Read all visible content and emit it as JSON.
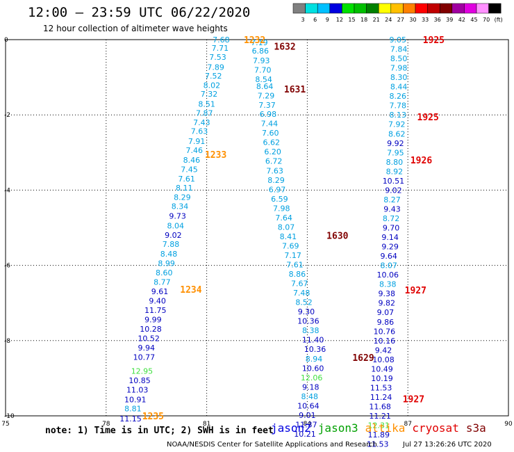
{
  "header": {
    "title": "12:00 – 23:59 UTC 06/22/2020",
    "subtitle": "12 hour collection of altimeter wave heights"
  },
  "colorbar": {
    "colors": [
      "#808080",
      "#00e0e0",
      "#00c0ff",
      "#0000e0",
      "#00e000",
      "#00c000",
      "#008000",
      "#ffff00",
      "#ffc000",
      "#ff8000",
      "#ff0000",
      "#c00000",
      "#800000",
      "#a000a0",
      "#e000e0",
      "#ff90ff",
      "#000000"
    ],
    "labels": [
      "3",
      "6",
      "9",
      "12",
      "15",
      "18",
      "21",
      "24",
      "27",
      "30",
      "33",
      "36",
      "39",
      "42",
      "45",
      "70",
      "(ft)"
    ]
  },
  "note": "note: 1) Time is in UTC; 2) SWH is in feet",
  "satellites": [
    {
      "name": "jason2",
      "color": "#0000e0"
    },
    {
      "name": "jason3",
      "color": "#00a000"
    },
    {
      "name": "altika",
      "color": "#ff9000"
    },
    {
      "name": "cryosat",
      "color": "#e00000"
    },
    {
      "name": "s3a",
      "color": "#800000"
    }
  ],
  "footer": {
    "credit": "NOAA/NESDIS Center for Satellite Applications and Research",
    "timestamp": "Jul 27 13:26:26 UTC 2020"
  },
  "chart_data": {
    "type": "scatter",
    "xlim": [
      75,
      90
    ],
    "ylim": [
      -10,
      0
    ],
    "x_ticks": [
      "75",
      "78",
      "81",
      "84",
      "87",
      "90"
    ],
    "y_ticks": [
      "0",
      "-2",
      "-4",
      "-6",
      "-8",
      "-10"
    ],
    "grid": true,
    "points": [
      {
        "x": 81.43,
        "y": 0.0,
        "v": "7.68",
        "c": "#00a0e0"
      },
      {
        "x": 81.4,
        "y": -0.22,
        "v": "7.71",
        "c": "#00a0e0"
      },
      {
        "x": 81.33,
        "y": -0.46,
        "v": "7.53",
        "c": "#00a0e0"
      },
      {
        "x": 81.27,
        "y": -0.73,
        "v": "7.89",
        "c": "#00a0e0"
      },
      {
        "x": 81.2,
        "y": -0.96,
        "v": "7.52",
        "c": "#00a0e0"
      },
      {
        "x": 81.15,
        "y": -1.21,
        "v": "8.02",
        "c": "#00a0e0"
      },
      {
        "x": 81.07,
        "y": -1.44,
        "v": "7.32",
        "c": "#00a0e0"
      },
      {
        "x": 81.0,
        "y": -1.71,
        "v": "8.51",
        "c": "#00a0e0"
      },
      {
        "x": 80.93,
        "y": -1.95,
        "v": "7.87",
        "c": "#00a0e0"
      },
      {
        "x": 80.85,
        "y": -2.2,
        "v": "7.43",
        "c": "#00a0e0"
      },
      {
        "x": 80.78,
        "y": -2.43,
        "v": "7.63",
        "c": "#00a0e0"
      },
      {
        "x": 80.7,
        "y": -2.7,
        "v": "7.91",
        "c": "#00a0e0"
      },
      {
        "x": 80.63,
        "y": -2.94,
        "v": "7.46",
        "c": "#00a0e0"
      },
      {
        "x": 80.55,
        "y": -3.2,
        "v": "8.46",
        "c": "#00a0e0"
      },
      {
        "x": 80.48,
        "y": -3.45,
        "v": "7.45",
        "c": "#00a0e0"
      },
      {
        "x": 80.4,
        "y": -3.7,
        "v": "7.61",
        "c": "#00a0e0"
      },
      {
        "x": 80.33,
        "y": -3.94,
        "v": "8.11",
        "c": "#00a0e0"
      },
      {
        "x": 80.27,
        "y": -4.19,
        "v": "8.29",
        "c": "#00a0e0"
      },
      {
        "x": 80.2,
        "y": -4.43,
        "v": "8.34",
        "c": "#00a0e0"
      },
      {
        "x": 80.13,
        "y": -4.69,
        "v": "9.73",
        "c": "#0000c0"
      },
      {
        "x": 80.07,
        "y": -4.94,
        "v": "8.04",
        "c": "#00a0e0"
      },
      {
        "x": 80.0,
        "y": -5.19,
        "v": "9.02",
        "c": "#0000c0"
      },
      {
        "x": 79.93,
        "y": -5.43,
        "v": "7.88",
        "c": "#00a0e0"
      },
      {
        "x": 79.87,
        "y": -5.69,
        "v": "8.48",
        "c": "#00a0e0"
      },
      {
        "x": 79.8,
        "y": -5.94,
        "v": "8.99",
        "c": "#00a0e0"
      },
      {
        "x": 79.73,
        "y": -6.19,
        "v": "8.60",
        "c": "#00a0e0"
      },
      {
        "x": 79.67,
        "y": -6.44,
        "v": "8.77",
        "c": "#00a0e0"
      },
      {
        "x": 79.6,
        "y": -6.69,
        "v": "9.61",
        "c": "#0000c0"
      },
      {
        "x": 79.53,
        "y": -6.94,
        "v": "9.40",
        "c": "#0000c0"
      },
      {
        "x": 79.47,
        "y": -7.19,
        "v": "11.75",
        "c": "#0000c0"
      },
      {
        "x": 79.4,
        "y": -7.44,
        "v": "9.99",
        "c": "#0000c0"
      },
      {
        "x": 79.33,
        "y": -7.69,
        "v": "10.28",
        "c": "#0000c0"
      },
      {
        "x": 79.27,
        "y": -7.94,
        "v": "10.52",
        "c": "#0000c0"
      },
      {
        "x": 79.2,
        "y": -8.19,
        "v": "9.94",
        "c": "#0000c0"
      },
      {
        "x": 79.13,
        "y": -8.44,
        "v": "10.77",
        "c": "#0000c0"
      },
      {
        "x": 79.07,
        "y": -8.81,
        "v": "12.95",
        "c": "#40e040"
      },
      {
        "x": 79.0,
        "y": -9.06,
        "v": "10.85",
        "c": "#0000c0"
      },
      {
        "x": 78.93,
        "y": -9.31,
        "v": "11.03",
        "c": "#0000c0"
      },
      {
        "x": 78.87,
        "y": -9.57,
        "v": "10.91",
        "c": "#0000c0"
      },
      {
        "x": 78.8,
        "y": -9.81,
        "v": "8.81",
        "c": "#00a0e0"
      },
      {
        "x": 78.73,
        "y": -10.07,
        "v": "11.15",
        "c": "#0000c0"
      },
      {
        "x": 82.57,
        "y": -0.07,
        "v": "7.19",
        "c": "#00a0e0"
      },
      {
        "x": 82.6,
        "y": -0.3,
        "v": "6.86",
        "c": "#00a0e0"
      },
      {
        "x": 82.63,
        "y": -0.55,
        "v": "7.93",
        "c": "#00a0e0"
      },
      {
        "x": 82.67,
        "y": -0.8,
        "v": "7.70",
        "c": "#00a0e0"
      },
      {
        "x": 82.7,
        "y": -1.05,
        "v": "8.54",
        "c": "#00a0e0"
      },
      {
        "x": 82.73,
        "y": -1.24,
        "v": "8.64",
        "c": "#00a0e0"
      },
      {
        "x": 82.77,
        "y": -1.49,
        "v": "7.29",
        "c": "#00a0e0"
      },
      {
        "x": 82.8,
        "y": -1.74,
        "v": "7.37",
        "c": "#00a0e0"
      },
      {
        "x": 82.83,
        "y": -1.98,
        "v": "6.98",
        "c": "#00a0e0"
      },
      {
        "x": 82.87,
        "y": -2.23,
        "v": "7.44",
        "c": "#00a0e0"
      },
      {
        "x": 82.9,
        "y": -2.48,
        "v": "7.60",
        "c": "#00a0e0"
      },
      {
        "x": 82.93,
        "y": -2.73,
        "v": "6.62",
        "c": "#00a0e0"
      },
      {
        "x": 82.97,
        "y": -2.98,
        "v": "6.20",
        "c": "#00a0e0"
      },
      {
        "x": 83.0,
        "y": -3.23,
        "v": "6.72",
        "c": "#00a0e0"
      },
      {
        "x": 83.03,
        "y": -3.48,
        "v": "7.63",
        "c": "#00a0e0"
      },
      {
        "x": 83.07,
        "y": -3.73,
        "v": "8.29",
        "c": "#00a0e0"
      },
      {
        "x": 83.1,
        "y": -3.98,
        "v": "6.97",
        "c": "#00a0e0"
      },
      {
        "x": 83.17,
        "y": -4.23,
        "v": "6.59",
        "c": "#00a0e0"
      },
      {
        "x": 83.23,
        "y": -4.48,
        "v": "7.98",
        "c": "#00a0e0"
      },
      {
        "x": 83.3,
        "y": -4.73,
        "v": "7.64",
        "c": "#00a0e0"
      },
      {
        "x": 83.37,
        "y": -4.98,
        "v": "8.07",
        "c": "#00a0e0"
      },
      {
        "x": 83.43,
        "y": -5.23,
        "v": "8.41",
        "c": "#00a0e0"
      },
      {
        "x": 83.5,
        "y": -5.48,
        "v": "7.69",
        "c": "#00a0e0"
      },
      {
        "x": 83.57,
        "y": -5.73,
        "v": "7.17",
        "c": "#00a0e0"
      },
      {
        "x": 83.63,
        "y": -5.98,
        "v": "7.61",
        "c": "#00a0e0"
      },
      {
        "x": 83.7,
        "y": -6.23,
        "v": "8.86",
        "c": "#00a0e0"
      },
      {
        "x": 83.77,
        "y": -6.48,
        "v": "7.67",
        "c": "#00a0e0"
      },
      {
        "x": 83.83,
        "y": -6.73,
        "v": "7.48",
        "c": "#00a0e0"
      },
      {
        "x": 83.9,
        "y": -6.98,
        "v": "8.52",
        "c": "#00a0e0"
      },
      {
        "x": 83.97,
        "y": -7.23,
        "v": "9.30",
        "c": "#0000c0"
      },
      {
        "x": 84.03,
        "y": -7.48,
        "v": "10.36",
        "c": "#0000c0"
      },
      {
        "x": 84.1,
        "y": -7.73,
        "v": "8.38",
        "c": "#00a0e0"
      },
      {
        "x": 84.17,
        "y": -7.98,
        "v": "11.40",
        "c": "#0000c0"
      },
      {
        "x": 84.23,
        "y": -8.23,
        "v": "10.36",
        "c": "#0000c0"
      },
      {
        "x": 84.2,
        "y": -8.48,
        "v": "8.94",
        "c": "#00a0e0"
      },
      {
        "x": 84.17,
        "y": -8.73,
        "v": "10.60",
        "c": "#0000c0"
      },
      {
        "x": 84.13,
        "y": -8.98,
        "v": "12.06",
        "c": "#40e040"
      },
      {
        "x": 84.1,
        "y": -9.23,
        "v": "9.18",
        "c": "#0000c0"
      },
      {
        "x": 84.07,
        "y": -9.48,
        "v": "8.48",
        "c": "#00a0e0"
      },
      {
        "x": 84.03,
        "y": -9.73,
        "v": "10.64",
        "c": "#0000c0"
      },
      {
        "x": 84.0,
        "y": -9.98,
        "v": "9.01",
        "c": "#0000c0"
      },
      {
        "x": 83.97,
        "y": -10.23,
        "v": "11.37",
        "c": "#0000c0"
      },
      {
        "x": 83.93,
        "y": -10.48,
        "v": "10.21",
        "c": "#0000c0"
      },
      {
        "x": 86.7,
        "y": 0.0,
        "v": "9.05",
        "c": "#00a0e0"
      },
      {
        "x": 86.73,
        "y": -0.25,
        "v": "7.84",
        "c": "#00a0e0"
      },
      {
        "x": 86.73,
        "y": -0.5,
        "v": "8.50",
        "c": "#00a0e0"
      },
      {
        "x": 86.73,
        "y": -0.75,
        "v": "7.98",
        "c": "#00a0e0"
      },
      {
        "x": 86.73,
        "y": -1.0,
        "v": "8.30",
        "c": "#00a0e0"
      },
      {
        "x": 86.73,
        "y": -1.25,
        "v": "8.44",
        "c": "#00a0e0"
      },
      {
        "x": 86.7,
        "y": -1.5,
        "v": "8.26",
        "c": "#00a0e0"
      },
      {
        "x": 86.7,
        "y": -1.75,
        "v": "7.78",
        "c": "#00a0e0"
      },
      {
        "x": 86.7,
        "y": -2.0,
        "v": "8.13",
        "c": "#00a0e0"
      },
      {
        "x": 86.67,
        "y": -2.25,
        "v": "7.92",
        "c": "#00a0e0"
      },
      {
        "x": 86.67,
        "y": -2.5,
        "v": "8.62",
        "c": "#00a0e0"
      },
      {
        "x": 86.63,
        "y": -2.75,
        "v": "9.92",
        "c": "#0000c0"
      },
      {
        "x": 86.63,
        "y": -3.0,
        "v": "7.95",
        "c": "#00a0e0"
      },
      {
        "x": 86.6,
        "y": -3.25,
        "v": "8.80",
        "c": "#00a0e0"
      },
      {
        "x": 86.6,
        "y": -3.5,
        "v": "8.92",
        "c": "#00a0e0"
      },
      {
        "x": 86.57,
        "y": -3.75,
        "v": "10.51",
        "c": "#0000c0"
      },
      {
        "x": 86.57,
        "y": -4.0,
        "v": "9.02",
        "c": "#0000c0"
      },
      {
        "x": 86.53,
        "y": -4.25,
        "v": "8.27",
        "c": "#00a0e0"
      },
      {
        "x": 86.53,
        "y": -4.5,
        "v": "9.43",
        "c": "#0000c0"
      },
      {
        "x": 86.5,
        "y": -4.75,
        "v": "8.72",
        "c": "#00a0e0"
      },
      {
        "x": 86.5,
        "y": -5.0,
        "v": "9.70",
        "c": "#0000c0"
      },
      {
        "x": 86.47,
        "y": -5.25,
        "v": "9.14",
        "c": "#0000c0"
      },
      {
        "x": 86.47,
        "y": -5.5,
        "v": "9.29",
        "c": "#0000c0"
      },
      {
        "x": 86.43,
        "y": -5.75,
        "v": "9.64",
        "c": "#0000c0"
      },
      {
        "x": 86.43,
        "y": -6.0,
        "v": "8.07",
        "c": "#00a0e0"
      },
      {
        "x": 86.4,
        "y": -6.25,
        "v": "10.06",
        "c": "#0000c0"
      },
      {
        "x": 86.4,
        "y": -6.5,
        "v": "8.38",
        "c": "#00a0e0"
      },
      {
        "x": 86.37,
        "y": -6.75,
        "v": "9.38",
        "c": "#0000c0"
      },
      {
        "x": 86.37,
        "y": -7.0,
        "v": "9.82",
        "c": "#0000c0"
      },
      {
        "x": 86.33,
        "y": -7.25,
        "v": "9.07",
        "c": "#0000c0"
      },
      {
        "x": 86.33,
        "y": -7.5,
        "v": "9.86",
        "c": "#0000c0"
      },
      {
        "x": 86.3,
        "y": -7.75,
        "v": "10.76",
        "c": "#0000c0"
      },
      {
        "x": 86.3,
        "y": -8.0,
        "v": "10.16",
        "c": "#0000c0"
      },
      {
        "x": 86.27,
        "y": -8.25,
        "v": "9.42",
        "c": "#0000c0"
      },
      {
        "x": 86.27,
        "y": -8.5,
        "v": "10.08",
        "c": "#0000c0"
      },
      {
        "x": 86.23,
        "y": -8.75,
        "v": "10.49",
        "c": "#0000c0"
      },
      {
        "x": 86.23,
        "y": -9.0,
        "v": "10.19",
        "c": "#0000c0"
      },
      {
        "x": 86.2,
        "y": -9.25,
        "v": "11.53",
        "c": "#0000c0"
      },
      {
        "x": 86.2,
        "y": -9.5,
        "v": "11.24",
        "c": "#0000c0"
      },
      {
        "x": 86.17,
        "y": -9.75,
        "v": "11.68",
        "c": "#0000c0"
      },
      {
        "x": 86.17,
        "y": -10.0,
        "v": "11.21",
        "c": "#0000c0"
      },
      {
        "x": 86.13,
        "y": -10.25,
        "v": "12.31",
        "c": "#40e040"
      },
      {
        "x": 86.13,
        "y": -10.5,
        "v": "11.89",
        "c": "#0000c0"
      },
      {
        "x": 86.1,
        "y": -10.75,
        "v": "11.53",
        "c": "#0000c0"
      }
    ],
    "time_labels": [
      {
        "x": 82.43,
        "y": 0.0,
        "t": "1232",
        "c": "#ff9000"
      },
      {
        "x": 81.27,
        "y": -3.05,
        "t": "1233",
        "c": "#ff9000"
      },
      {
        "x": 80.53,
        "y": -6.64,
        "t": "1234",
        "c": "#ff9000"
      },
      {
        "x": 79.4,
        "y": -10.0,
        "t": "1235",
        "c": "#ff9000"
      },
      {
        "x": 83.33,
        "y": -0.18,
        "t": "1632",
        "c": "#800000"
      },
      {
        "x": 83.63,
        "y": -1.31,
        "t": "1631",
        "c": "#800000"
      },
      {
        "x": 84.9,
        "y": -5.2,
        "t": "1630",
        "c": "#800000"
      },
      {
        "x": 85.67,
        "y": -8.45,
        "t": "1629",
        "c": "#800000"
      },
      {
        "x": 87.77,
        "y": 0.0,
        "t": "1925",
        "c": "#e00000"
      },
      {
        "x": 87.6,
        "y": -2.05,
        "t": "1925",
        "c": "#e00000"
      },
      {
        "x": 87.4,
        "y": -3.2,
        "t": "1926",
        "c": "#e00000"
      },
      {
        "x": 87.23,
        "y": -6.65,
        "t": "1927",
        "c": "#e00000"
      },
      {
        "x": 87.17,
        "y": -9.55,
        "t": "1927",
        "c": "#e00000"
      }
    ]
  }
}
